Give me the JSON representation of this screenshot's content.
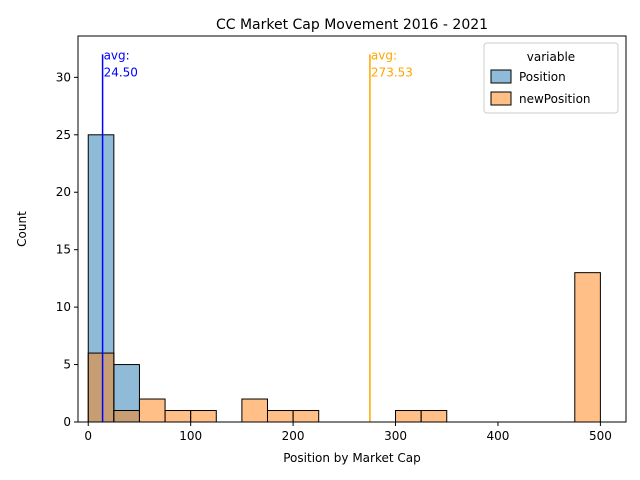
{
  "chart_data": {
    "type": "histogram",
    "title": "CC Market Cap Movement 2016 - 2021",
    "xlabel": "Position by Market Cap",
    "ylabel": "Count",
    "xlim": [
      -10,
      525
    ],
    "ylim": [
      0,
      33.6
    ],
    "xticks": [
      0,
      100,
      200,
      300,
      400,
      500
    ],
    "yticks": [
      0,
      5,
      10,
      15,
      20,
      25,
      30
    ],
    "bin_width": 25,
    "grid": false,
    "legend": {
      "title": "variable",
      "placement": "top-right"
    },
    "series": [
      {
        "name": "Position",
        "color": "#1f77b4",
        "bins": [
          {
            "start": 0,
            "end": 25,
            "count": 25
          },
          {
            "start": 25,
            "end": 50,
            "count": 5
          }
        ]
      },
      {
        "name": "newPosition",
        "color": "#ff7f0e",
        "bins": [
          {
            "start": 0,
            "end": 25,
            "count": 6
          },
          {
            "start": 25,
            "end": 50,
            "count": 1
          },
          {
            "start": 50,
            "end": 75,
            "count": 2
          },
          {
            "start": 75,
            "end": 100,
            "count": 1
          },
          {
            "start": 100,
            "end": 125,
            "count": 1
          },
          {
            "start": 150,
            "end": 175,
            "count": 2
          },
          {
            "start": 175,
            "end": 200,
            "count": 1
          },
          {
            "start": 200,
            "end": 225,
            "count": 1
          },
          {
            "start": 300,
            "end": 325,
            "count": 1
          },
          {
            "start": 325,
            "end": 350,
            "count": 1
          },
          {
            "start": 475,
            "end": 500,
            "count": 13
          }
        ]
      }
    ],
    "annotations": [
      {
        "x": 14,
        "y_from": 0,
        "y_to": 32,
        "color": "#0000ff",
        "label_line1": "avg:",
        "label_line2": "24.50"
      },
      {
        "x": 275,
        "y_from": 0,
        "y_to": 32,
        "color": "#ffa500",
        "label_line1": "avg:",
        "label_line2": "273.53"
      }
    ]
  }
}
